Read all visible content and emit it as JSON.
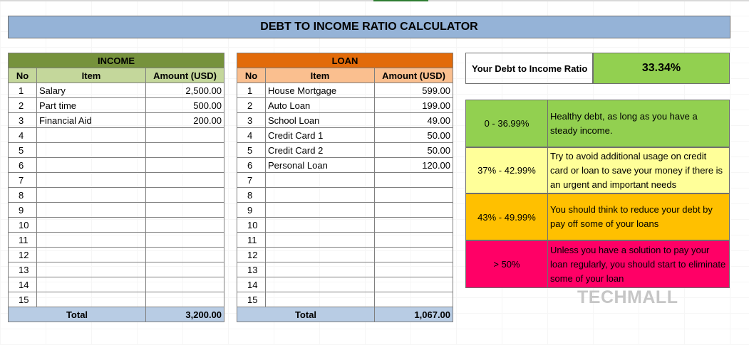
{
  "title": "DEBT TO INCOME RATIO CALCULATOR",
  "income": {
    "header": "INCOME",
    "columns": [
      "No",
      "Item",
      "Amount (USD)"
    ],
    "rows": [
      {
        "no": "1",
        "item": "Salary",
        "amount": "2,500.00"
      },
      {
        "no": "2",
        "item": "Part time",
        "amount": "500.00"
      },
      {
        "no": "3",
        "item": "Financial Aid",
        "amount": "200.00"
      },
      {
        "no": "4",
        "item": "",
        "amount": ""
      },
      {
        "no": "5",
        "item": "",
        "amount": ""
      },
      {
        "no": "6",
        "item": "",
        "amount": ""
      },
      {
        "no": "7",
        "item": "",
        "amount": ""
      },
      {
        "no": "8",
        "item": "",
        "amount": ""
      },
      {
        "no": "9",
        "item": "",
        "amount": ""
      },
      {
        "no": "10",
        "item": "",
        "amount": ""
      },
      {
        "no": "11",
        "item": "",
        "amount": ""
      },
      {
        "no": "12",
        "item": "",
        "amount": ""
      },
      {
        "no": "13",
        "item": "",
        "amount": ""
      },
      {
        "no": "14",
        "item": "",
        "amount": ""
      },
      {
        "no": "15",
        "item": "",
        "amount": ""
      }
    ],
    "total_label": "Total",
    "total": "3,200.00"
  },
  "loan": {
    "header": "LOAN",
    "columns": [
      "No",
      "Item",
      "Amount (USD)"
    ],
    "rows": [
      {
        "no": "1",
        "item": "House Mortgage",
        "amount": "599.00"
      },
      {
        "no": "2",
        "item": "Auto Loan",
        "amount": "199.00"
      },
      {
        "no": "3",
        "item": "School Loan",
        "amount": "49.00"
      },
      {
        "no": "4",
        "item": "Credit Card 1",
        "amount": "50.00"
      },
      {
        "no": "5",
        "item": "Credit Card 2",
        "amount": "50.00"
      },
      {
        "no": "6",
        "item": "Personal Loan",
        "amount": "120.00"
      },
      {
        "no": "7",
        "item": "",
        "amount": ""
      },
      {
        "no": "8",
        "item": "",
        "amount": ""
      },
      {
        "no": "9",
        "item": "",
        "amount": ""
      },
      {
        "no": "10",
        "item": "",
        "amount": ""
      },
      {
        "no": "11",
        "item": "",
        "amount": ""
      },
      {
        "no": "12",
        "item": "",
        "amount": ""
      },
      {
        "no": "13",
        "item": "",
        "amount": ""
      },
      {
        "no": "14",
        "item": "",
        "amount": ""
      },
      {
        "no": "15",
        "item": "",
        "amount": ""
      }
    ],
    "total_label": "Total",
    "total": "1,067.00"
  },
  "ratio": {
    "label": "Your Debt to Income Ratio",
    "value": "33.34%"
  },
  "legend": [
    {
      "range": "0 - 36.99%",
      "text": "Healthy debt, as long as you have a steady income.",
      "color": "#92d050"
    },
    {
      "range": "37% - 42.99%",
      "text": "Try to avoid additional usage on credit card or loan to save your money if there is an urgent and important needs",
      "color": "#ffff99"
    },
    {
      "range": "43% - 49.99%",
      "text": "You should think to reduce your debt by pay off some of your loans",
      "color": "#ffc000"
    },
    {
      "range": "> 50%",
      "text": "Unless you have a solution to pay your loan regularly, you should start to eliminate some of your loan",
      "color": "#ff0066"
    }
  ],
  "brand": "TECHMALL"
}
